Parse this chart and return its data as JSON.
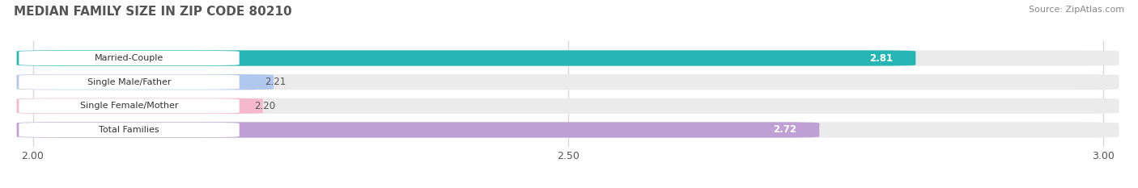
{
  "title": "MEDIAN FAMILY SIZE IN ZIP CODE 80210",
  "source": "Source: ZipAtlas.com",
  "categories": [
    "Married-Couple",
    "Single Male/Father",
    "Single Female/Mother",
    "Total Families"
  ],
  "values": [
    2.81,
    2.21,
    2.2,
    2.72
  ],
  "bar_colors": [
    "#26b5b5",
    "#b0c8ee",
    "#f5b8cc",
    "#bf9fd4"
  ],
  "label_colors": [
    "#ffffff",
    "#444444",
    "#444444",
    "#ffffff"
  ],
  "xlim_data": [
    2.0,
    3.0
  ],
  "xticks": [
    2.0,
    2.5,
    3.0
  ],
  "bar_height": 0.62,
  "figsize": [
    14.06,
    2.33
  ],
  "dpi": 100,
  "background_color": "#ffffff",
  "bar_bg_color": "#ebebeb",
  "grid_color": "#d8d8d8"
}
